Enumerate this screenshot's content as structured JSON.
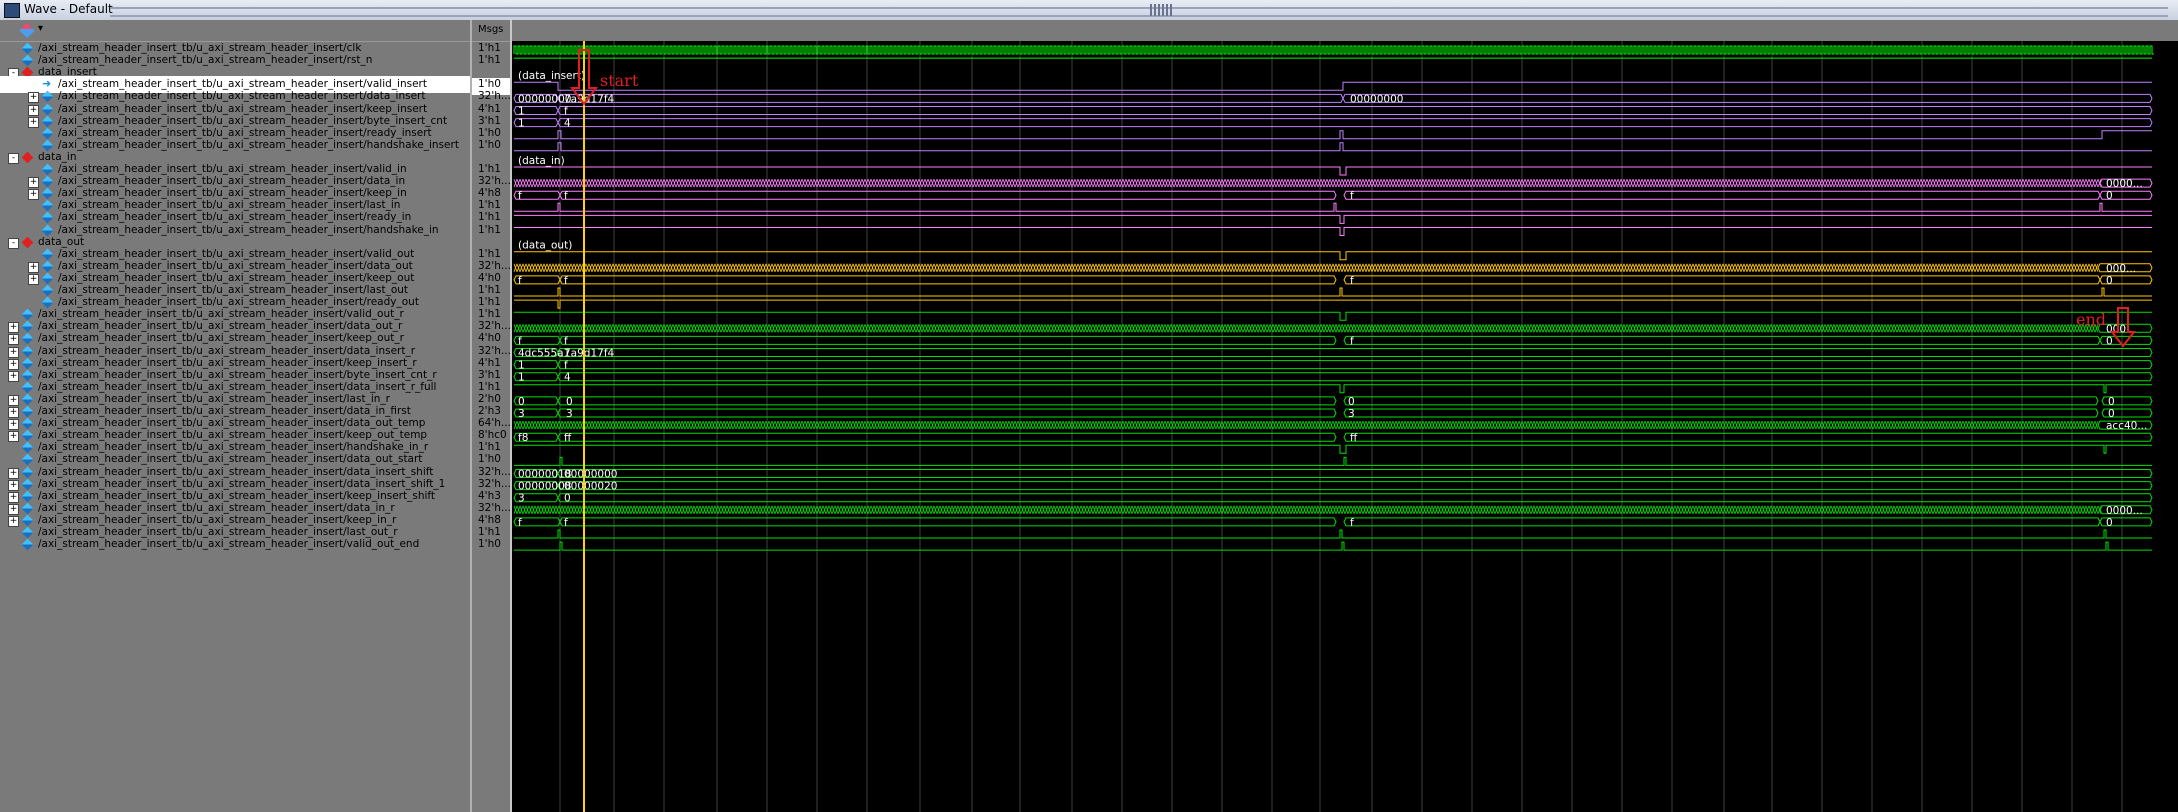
{
  "window": {
    "title": "Wave - Default"
  },
  "headers": {
    "msgs": "Msgs"
  },
  "annotations": {
    "start": "start",
    "end": "end"
  },
  "colors": {
    "clk": "#00ff00",
    "insert": "#c080ff",
    "in": "#ff80ff",
    "out": "#ffc800",
    "reg": "#00e000",
    "cursor": "#ffd400",
    "grid": "#404040",
    "marker": "#e02020"
  },
  "signals": [
    {
      "name": "/axi_stream_header_insert_tb/u_axi_stream_header_insert/clk",
      "value": "1'h1",
      "indent": 1,
      "group": false,
      "expand": false,
      "icon": "signal-icon",
      "color": "clk",
      "sel": false
    },
    {
      "name": "/axi_stream_header_insert_tb/u_axi_stream_header_insert/rst_n",
      "value": "1'h1",
      "indent": 1,
      "group": false,
      "expand": false,
      "icon": "signal-icon",
      "color": "clk",
      "sel": false
    },
    {
      "name": "data_insert",
      "value": "",
      "indent": 1,
      "group": true,
      "expand": "-",
      "icon": "group-icon",
      "color": "insert",
      "sel": false
    },
    {
      "name": "/axi_stream_header_insert_tb/u_axi_stream_header_insert/valid_insert",
      "value": "1'h0",
      "indent": 2,
      "group": false,
      "expand": false,
      "icon": "input-arrow-icon",
      "color": "insert",
      "sel": true
    },
    {
      "name": "/axi_stream_header_insert_tb/u_axi_stream_header_insert/data_insert",
      "value": "32'h...",
      "indent": 2,
      "group": false,
      "expand": "+",
      "icon": "signal-icon",
      "color": "insert",
      "sel": false
    },
    {
      "name": "/axi_stream_header_insert_tb/u_axi_stream_header_insert/keep_insert",
      "value": "4'h1",
      "indent": 2,
      "group": false,
      "expand": "+",
      "icon": "signal-icon",
      "color": "insert",
      "sel": false
    },
    {
      "name": "/axi_stream_header_insert_tb/u_axi_stream_header_insert/byte_insert_cnt",
      "value": "3'h1",
      "indent": 2,
      "group": false,
      "expand": "+",
      "icon": "signal-icon",
      "color": "insert",
      "sel": false
    },
    {
      "name": "/axi_stream_header_insert_tb/u_axi_stream_header_insert/ready_insert",
      "value": "1'h0",
      "indent": 2,
      "group": false,
      "expand": false,
      "icon": "signal-icon",
      "color": "insert",
      "sel": false
    },
    {
      "name": "/axi_stream_header_insert_tb/u_axi_stream_header_insert/handshake_insert",
      "value": "1'h0",
      "indent": 2,
      "group": false,
      "expand": false,
      "icon": "signal-icon",
      "color": "insert",
      "sel": false
    },
    {
      "name": "data_in",
      "value": "",
      "indent": 1,
      "group": true,
      "expand": "-",
      "icon": "group-icon",
      "color": "in",
      "sel": false
    },
    {
      "name": "/axi_stream_header_insert_tb/u_axi_stream_header_insert/valid_in",
      "value": "1'h1",
      "indent": 2,
      "group": false,
      "expand": false,
      "icon": "signal-icon",
      "color": "in",
      "sel": false
    },
    {
      "name": "/axi_stream_header_insert_tb/u_axi_stream_header_insert/data_in",
      "value": "32'h...",
      "indent": 2,
      "group": false,
      "expand": "+",
      "icon": "signal-icon",
      "color": "in",
      "sel": false
    },
    {
      "name": "/axi_stream_header_insert_tb/u_axi_stream_header_insert/keep_in",
      "value": "4'h8",
      "indent": 2,
      "group": false,
      "expand": "+",
      "icon": "signal-icon",
      "color": "in",
      "sel": false
    },
    {
      "name": "/axi_stream_header_insert_tb/u_axi_stream_header_insert/last_in",
      "value": "1'h1",
      "indent": 2,
      "group": false,
      "expand": false,
      "icon": "signal-icon",
      "color": "in",
      "sel": false
    },
    {
      "name": "/axi_stream_header_insert_tb/u_axi_stream_header_insert/ready_in",
      "value": "1'h1",
      "indent": 2,
      "group": false,
      "expand": false,
      "icon": "signal-icon",
      "color": "in",
      "sel": false
    },
    {
      "name": "/axi_stream_header_insert_tb/u_axi_stream_header_insert/handshake_in",
      "value": "1'h1",
      "indent": 2,
      "group": false,
      "expand": false,
      "icon": "signal-icon",
      "color": "in",
      "sel": false
    },
    {
      "name": "data_out",
      "value": "",
      "indent": 1,
      "group": true,
      "expand": "-",
      "icon": "group-icon",
      "color": "out",
      "sel": false
    },
    {
      "name": "/axi_stream_header_insert_tb/u_axi_stream_header_insert/valid_out",
      "value": "1'h1",
      "indent": 2,
      "group": false,
      "expand": false,
      "icon": "signal-icon",
      "color": "out",
      "sel": false
    },
    {
      "name": "/axi_stream_header_insert_tb/u_axi_stream_header_insert/data_out",
      "value": "32'h...",
      "indent": 2,
      "group": false,
      "expand": "+",
      "icon": "signal-icon",
      "color": "out",
      "sel": false
    },
    {
      "name": "/axi_stream_header_insert_tb/u_axi_stream_header_insert/keep_out",
      "value": "4'h0",
      "indent": 2,
      "group": false,
      "expand": "+",
      "icon": "signal-icon",
      "color": "out",
      "sel": false
    },
    {
      "name": "/axi_stream_header_insert_tb/u_axi_stream_header_insert/last_out",
      "value": "1'h1",
      "indent": 2,
      "group": false,
      "expand": false,
      "icon": "signal-icon",
      "color": "out",
      "sel": false
    },
    {
      "name": "/axi_stream_header_insert_tb/u_axi_stream_header_insert/ready_out",
      "value": "1'h1",
      "indent": 2,
      "group": false,
      "expand": false,
      "icon": "signal-icon",
      "color": "out",
      "sel": false
    },
    {
      "name": "/axi_stream_header_insert_tb/u_axi_stream_header_insert/valid_out_r",
      "value": "1'h1",
      "indent": 1,
      "group": false,
      "expand": false,
      "icon": "signal-icon",
      "color": "reg",
      "sel": false
    },
    {
      "name": "/axi_stream_header_insert_tb/u_axi_stream_header_insert/data_out_r",
      "value": "32'h...",
      "indent": 1,
      "group": false,
      "expand": "+",
      "icon": "signal-icon",
      "color": "reg",
      "sel": false
    },
    {
      "name": "/axi_stream_header_insert_tb/u_axi_stream_header_insert/keep_out_r",
      "value": "4'h0",
      "indent": 1,
      "group": false,
      "expand": "+",
      "icon": "signal-icon",
      "color": "reg",
      "sel": false
    },
    {
      "name": "/axi_stream_header_insert_tb/u_axi_stream_header_insert/data_insert_r",
      "value": "32'h...",
      "indent": 1,
      "group": false,
      "expand": "+",
      "icon": "signal-icon",
      "color": "reg",
      "sel": false
    },
    {
      "name": "/axi_stream_header_insert_tb/u_axi_stream_header_insert/keep_insert_r",
      "value": "4'h1",
      "indent": 1,
      "group": false,
      "expand": "+",
      "icon": "signal-icon",
      "color": "reg",
      "sel": false
    },
    {
      "name": "/axi_stream_header_insert_tb/u_axi_stream_header_insert/byte_insert_cnt_r",
      "value": "3'h1",
      "indent": 1,
      "group": false,
      "expand": "+",
      "icon": "signal-icon",
      "color": "reg",
      "sel": false
    },
    {
      "name": "/axi_stream_header_insert_tb/u_axi_stream_header_insert/data_insert_r_full",
      "value": "1'h1",
      "indent": 1,
      "group": false,
      "expand": false,
      "icon": "signal-icon",
      "color": "reg",
      "sel": false
    },
    {
      "name": "/axi_stream_header_insert_tb/u_axi_stream_header_insert/last_in_r",
      "value": "2'h0",
      "indent": 1,
      "group": false,
      "expand": "+",
      "icon": "signal-icon",
      "color": "reg",
      "sel": false
    },
    {
      "name": "/axi_stream_header_insert_tb/u_axi_stream_header_insert/data_in_first",
      "value": "2'h3",
      "indent": 1,
      "group": false,
      "expand": "+",
      "icon": "signal-icon",
      "color": "reg",
      "sel": false
    },
    {
      "name": "/axi_stream_header_insert_tb/u_axi_stream_header_insert/data_out_temp",
      "value": "64'h...",
      "indent": 1,
      "group": false,
      "expand": "+",
      "icon": "signal-icon",
      "color": "reg",
      "sel": false
    },
    {
      "name": "/axi_stream_header_insert_tb/u_axi_stream_header_insert/keep_out_temp",
      "value": "8'hc0",
      "indent": 1,
      "group": false,
      "expand": "+",
      "icon": "signal-icon",
      "color": "reg",
      "sel": false
    },
    {
      "name": "/axi_stream_header_insert_tb/u_axi_stream_header_insert/handshake_in_r",
      "value": "1'h1",
      "indent": 1,
      "group": false,
      "expand": false,
      "icon": "signal-icon",
      "color": "reg",
      "sel": false
    },
    {
      "name": "/axi_stream_header_insert_tb/u_axi_stream_header_insert/data_out_start",
      "value": "1'h0",
      "indent": 1,
      "group": false,
      "expand": false,
      "icon": "signal-icon",
      "color": "reg",
      "sel": false
    },
    {
      "name": "/axi_stream_header_insert_tb/u_axi_stream_header_insert/data_insert_shift",
      "value": "32'h...",
      "indent": 1,
      "group": false,
      "expand": "+",
      "icon": "signal-icon",
      "color": "reg",
      "sel": false
    },
    {
      "name": "/axi_stream_header_insert_tb/u_axi_stream_header_insert/data_insert_shift_1",
      "value": "32'h...",
      "indent": 1,
      "group": false,
      "expand": "+",
      "icon": "signal-icon",
      "color": "reg",
      "sel": false
    },
    {
      "name": "/axi_stream_header_insert_tb/u_axi_stream_header_insert/keep_insert_shift",
      "value": "4'h3",
      "indent": 1,
      "group": false,
      "expand": "+",
      "icon": "signal-icon",
      "color": "reg",
      "sel": false
    },
    {
      "name": "/axi_stream_header_insert_tb/u_axi_stream_header_insert/data_in_r",
      "value": "32'h...",
      "indent": 1,
      "group": false,
      "expand": "+",
      "icon": "signal-icon",
      "color": "reg",
      "sel": false
    },
    {
      "name": "/axi_stream_header_insert_tb/u_axi_stream_header_insert/keep_in_r",
      "value": "4'h8",
      "indent": 1,
      "group": false,
      "expand": "+",
      "icon": "signal-icon",
      "color": "reg",
      "sel": false
    },
    {
      "name": "/axi_stream_header_insert_tb/u_axi_stream_header_insert/last_out_r",
      "value": "1'h1",
      "indent": 1,
      "group": false,
      "expand": false,
      "icon": "signal-icon",
      "color": "reg",
      "sel": false
    },
    {
      "name": "/axi_stream_header_insert_tb/u_axi_stream_header_insert/valid_out_end",
      "value": "1'h0",
      "indent": 1,
      "group": false,
      "expand": false,
      "icon": "signal-icon",
      "color": "reg",
      "sel": false
    }
  ],
  "wave_labels": {
    "group_data_insert": "(data_insert)",
    "group_data_in": "(data_in)",
    "group_data_out": "(data_out)",
    "data_insert_a": "00000000",
    "data_insert_b": "7a9d17f4",
    "data_insert_c": "00000000",
    "keep_insert_a": "1",
    "keep_insert_b": "f",
    "byte_cnt_a": "1",
    "byte_cnt_b": "4",
    "data_in_end": "0000...",
    "keep_in_a": "f",
    "keep_in_b": "f",
    "keep_in_c": "f",
    "keep_in_d": "0",
    "data_out_end": "000...",
    "keep_out_a": "f",
    "keep_out_b": "f",
    "keep_out_c": "f",
    "keep_out_d": "0",
    "data_out_r_end": "000...",
    "keep_out_r_a": "f",
    "keep_out_r_b": "f",
    "keep_out_r_c": "f",
    "keep_out_r_d": "0",
    "data_insert_r_a": "4dc555a1",
    "data_insert_r_b": "7a9d17f4",
    "keep_insert_r_a": "1",
    "keep_insert_r_b": "f",
    "byte_cnt_r_a": "1",
    "byte_cnt_r_b": "4",
    "last_in_r_a": "0",
    "last_in_r_b": "0",
    "last_in_r_c": "0",
    "last_in_r_d": "0",
    "data_in_first_a": "3",
    "data_in_first_b": "3",
    "data_in_first_c": "3",
    "data_in_first_d": "0",
    "data_out_temp_end": "acc40...",
    "keep_out_temp_a": "f8",
    "keep_out_temp_b": "ff",
    "keep_out_temp_c": "ff",
    "data_insert_shift_a": "00000018",
    "data_insert_shift_b": "00000000",
    "data_insert_shift_1_a": "00000008",
    "data_insert_shift_1_b": "00000020",
    "keep_insert_shift_a": "3",
    "keep_insert_shift_b": "0",
    "data_in_r_end": "0000...",
    "keep_in_r_a": "f",
    "keep_in_r_b": "f",
    "keep_in_r_c": "f",
    "keep_in_r_d": "0"
  }
}
